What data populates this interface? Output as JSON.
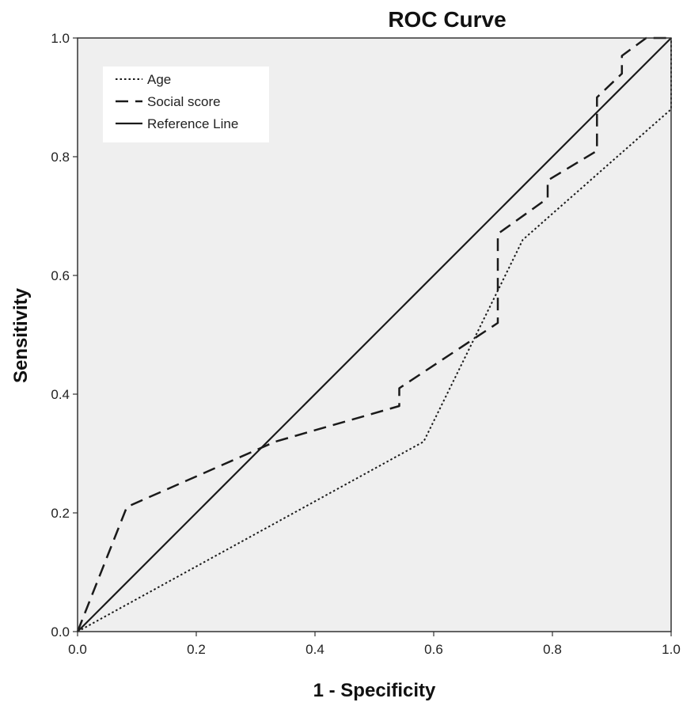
{
  "chart_data": {
    "type": "line",
    "title": "ROC Curve",
    "xlabel": "1 - Specificity",
    "ylabel": "Sensitivity",
    "xlim": [
      0.0,
      1.0
    ],
    "ylim": [
      0.0,
      1.0
    ],
    "xticks": [
      "0.0",
      "0.2",
      "0.4",
      "0.6",
      "0.8",
      "1.0"
    ],
    "yticks": [
      "0.0",
      "0.2",
      "0.4",
      "0.6",
      "0.8",
      "1.0"
    ],
    "grid": false,
    "legend_position": "top-left",
    "plot_background": "#efefef",
    "series": [
      {
        "name": "Age",
        "style": "dotted",
        "x": [
          0.0,
          0.583,
          0.75,
          1.0,
          1.0
        ],
        "y": [
          0.0,
          0.32,
          0.66,
          0.88,
          1.0
        ]
      },
      {
        "name": "Social score",
        "style": "dashed",
        "x": [
          0.0,
          0.083,
          0.333,
          0.542,
          0.542,
          0.708,
          0.708,
          0.792,
          0.792,
          0.875,
          0.875,
          0.917,
          0.917,
          0.958,
          1.0
        ],
        "y": [
          0.0,
          0.21,
          0.32,
          0.38,
          0.41,
          0.52,
          0.67,
          0.73,
          0.76,
          0.81,
          0.9,
          0.94,
          0.97,
          1.0,
          1.0
        ]
      },
      {
        "name": "Reference Line",
        "style": "solid",
        "x": [
          0.0,
          1.0
        ],
        "y": [
          0.0,
          1.0
        ]
      }
    ]
  }
}
